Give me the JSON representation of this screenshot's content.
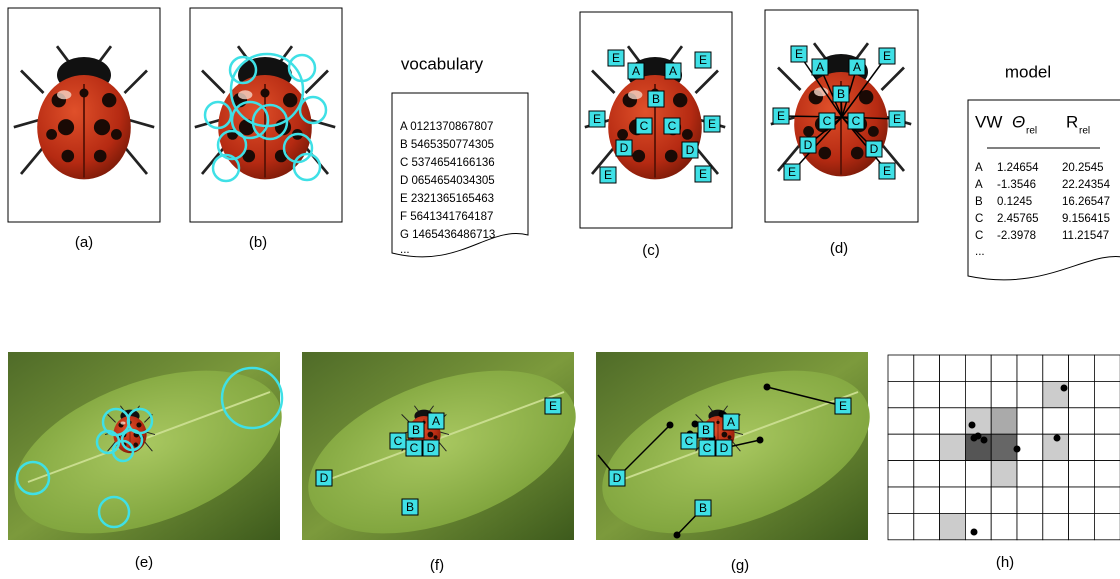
{
  "captions": [
    "(a)",
    "(b)",
    "(c)",
    "(d)",
    "(e)",
    "(f)",
    "(g)",
    "(h)"
  ],
  "vocabulary": {
    "title": "vocabulary",
    "lines": [
      "A 0121370867807",
      "B 5465350774305",
      "C 5374654166136",
      "D 0654654034305",
      "E 2321365165463",
      "F 5641341764187",
      "G 1465436486713"
    ],
    "ellipsis": "..."
  },
  "model": {
    "title": "model",
    "header": {
      "vw": "VW",
      "theta": "Θ",
      "theta_sub": "rel",
      "r": "R",
      "r_sub": "rel"
    },
    "rows": [
      [
        "A",
        "1.24654",
        "20.2545"
      ],
      [
        "A",
        "-1.3546",
        "22.24354"
      ],
      [
        "B",
        "0.1245",
        "16.26547"
      ],
      [
        "C",
        "2.45765",
        "9.156415"
      ],
      [
        "C",
        "-2.3978",
        "11.21547"
      ]
    ],
    "ellipsis": "..."
  },
  "panel_c_labels": [
    "E",
    "A",
    "A",
    "E",
    "B",
    "E",
    "C",
    "C",
    "E",
    "D",
    "D",
    "E",
    "E"
  ],
  "panel_d_labels": [
    "E",
    "A",
    "A",
    "E",
    "B",
    "E",
    "C",
    "C",
    "E",
    "D",
    "D",
    "E",
    "E"
  ],
  "panel_f_labels": [
    "A",
    "B",
    "C",
    "C",
    "D",
    "E",
    "D",
    "B"
  ],
  "panel_g_labels": [
    "A",
    "B",
    "C",
    "C",
    "D",
    "E",
    "D",
    "B"
  ]
}
